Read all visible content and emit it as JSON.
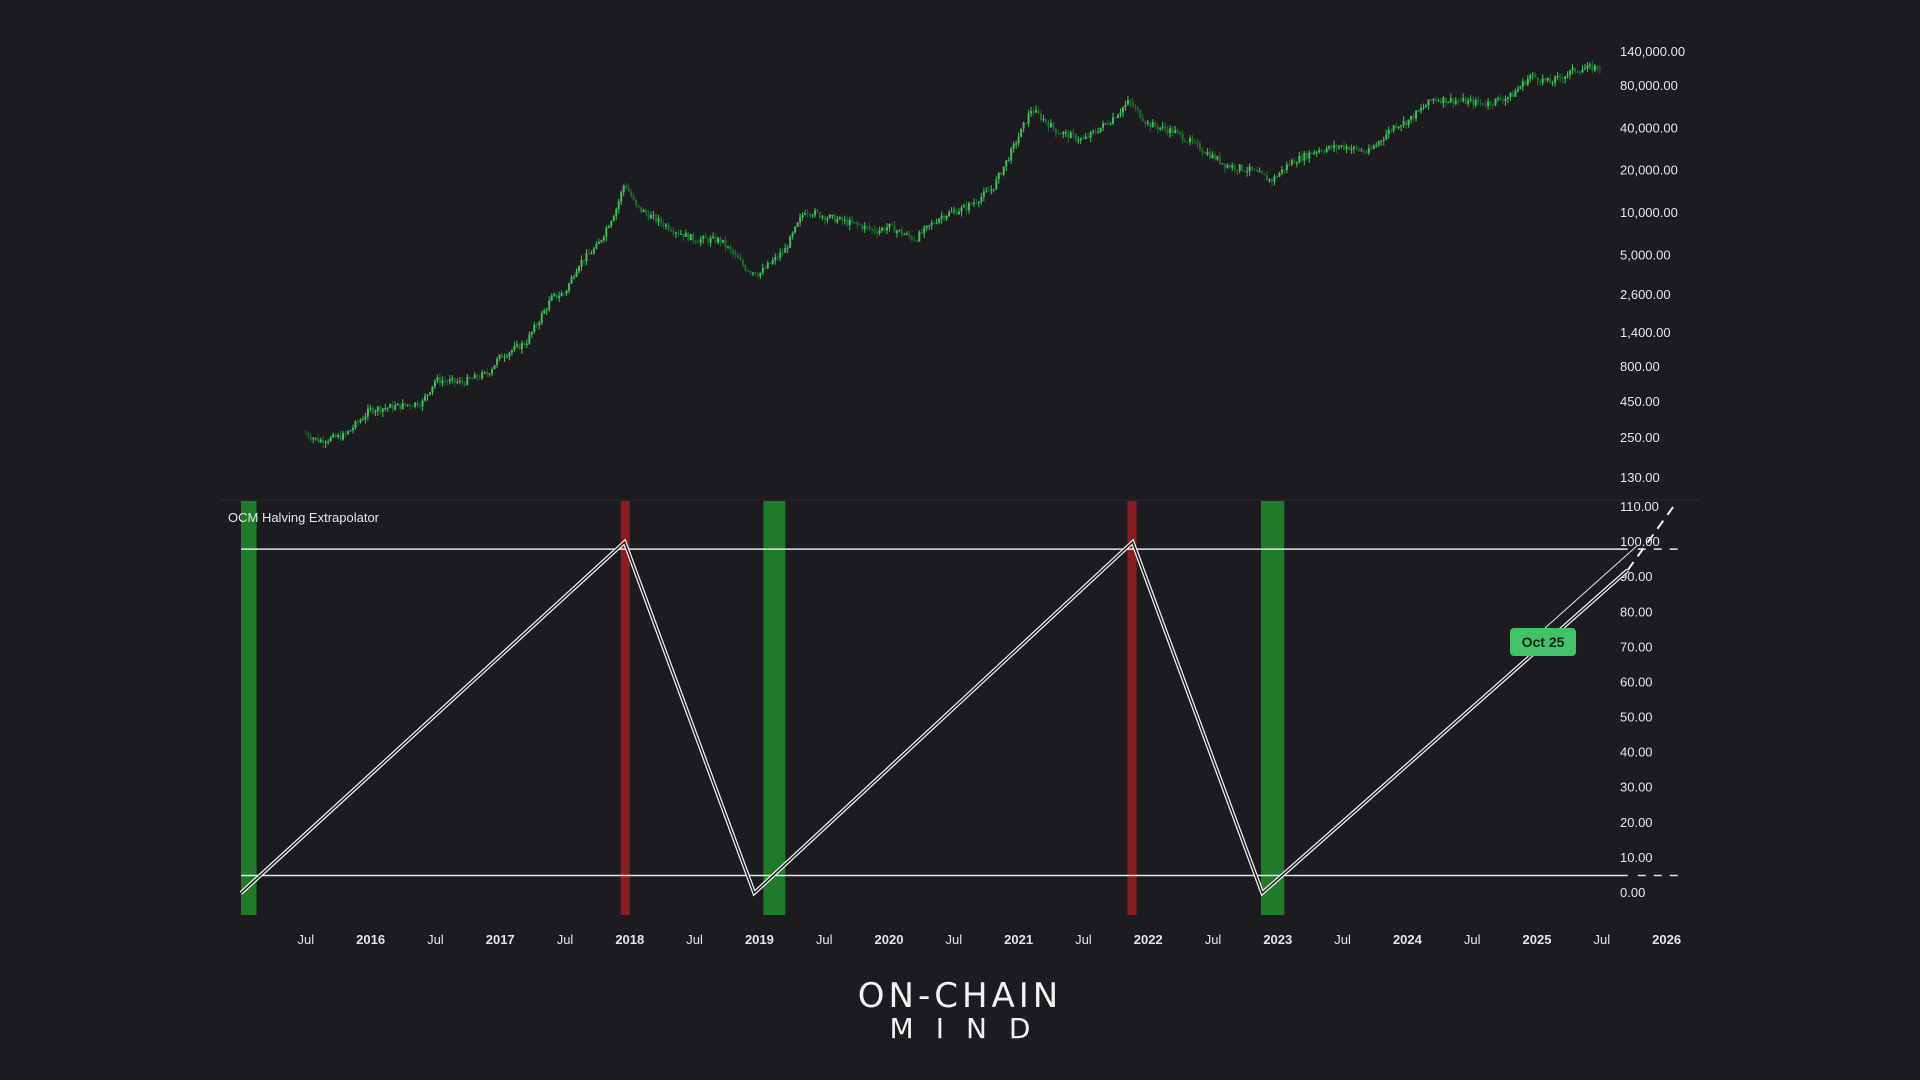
{
  "colors": {
    "background": "#1b1b20",
    "candle_up": "#3fbf5a",
    "candle_down": "#1f6b30",
    "bottom_band": "#1f7a2a",
    "top_band": "#8b1c22",
    "callout": "#3fc46a"
  },
  "indicator": {
    "name": "OCM Halving Extrapolator"
  },
  "callout": {
    "label": "Oct 25",
    "x": 2025.8,
    "y": 100
  },
  "brand": {
    "line1": "ON-CHAIN",
    "line2": "MIND"
  },
  "chart_data": [
    {
      "type": "candlestick",
      "title": "",
      "yscale": "log",
      "ylim": [
        130,
        140000
      ],
      "y_ticks": [
        "140,000.00",
        "80,000.00",
        "40,000.00",
        "20,000.00",
        "10,000.00",
        "5,000.00",
        "2,600.00",
        "1,400.00",
        "800.00",
        "450.00",
        "250.00",
        "130.00"
      ],
      "series": [
        {
          "x": [
            2015.5,
            2015.6,
            2015.8,
            2016.0,
            2016.2,
            2016.4,
            2016.5,
            2016.7,
            2016.9,
            2017.0,
            2017.2,
            2017.4,
            2017.5,
            2017.6,
            2017.75,
            2017.9,
            2017.96,
            2018.05,
            2018.2,
            2018.35,
            2018.5,
            2018.7,
            2018.9,
            2019.0,
            2019.2,
            2019.35,
            2019.5,
            2019.7,
            2019.9,
            2020.0,
            2020.2,
            2020.4,
            2020.6,
            2020.8,
            2020.95,
            2021.1,
            2021.3,
            2021.5,
            2021.7,
            2021.85,
            2022.0,
            2022.2,
            2022.4,
            2022.6,
            2022.8,
            2022.95,
            2023.1,
            2023.3,
            2023.5,
            2023.7,
            2023.9,
            2024.0,
            2024.2,
            2024.4,
            2024.6,
            2024.8,
            2024.95,
            2025.1,
            2025.3,
            2025.5
          ],
          "y": [
            270,
            240,
            260,
            400,
            420,
            450,
            650,
            620,
            720,
            950,
            1200,
            2500,
            2700,
            4300,
            5800,
            11000,
            16500,
            11000,
            9000,
            7500,
            6500,
            6400,
            4000,
            3700,
            5500,
            10500,
            9500,
            8500,
            7500,
            8000,
            6500,
            9500,
            11000,
            15000,
            28000,
            55000,
            38000,
            33000,
            45000,
            62000,
            43000,
            38000,
            29000,
            22000,
            20000,
            17000,
            23000,
            28000,
            30000,
            27000,
            42000,
            45000,
            65000,
            63000,
            60000,
            68000,
            95000,
            85000,
            105000,
            110000
          ]
        }
      ]
    },
    {
      "type": "line",
      "title": "OCM Halving Extrapolator",
      "ylim": [
        0,
        110
      ],
      "y_ticks": [
        "110.00",
        "100.00",
        "90.00",
        "80.00",
        "70.00",
        "60.00",
        "50.00",
        "40.00",
        "30.00",
        "20.00",
        "10.00",
        "0.00"
      ],
      "x_ticks": [
        "Jul",
        "2016",
        "Jul",
        "2017",
        "Jul",
        "2018",
        "Jul",
        "2019",
        "Jul",
        "2020",
        "Jul",
        "2021",
        "Jul",
        "2022",
        "Jul",
        "2023",
        "Jul",
        "2024",
        "Jul",
        "2025",
        "Jul",
        "2026"
      ],
      "series": [
        {
          "x": [
            2015.0,
            2017.96,
            2018.96,
            2021.88,
            2022.88,
            2025.7
          ],
          "y": [
            0,
            100,
            0,
            100,
            0,
            92
          ]
        }
      ],
      "projection": {
        "x": [
          2025.7,
          2026.05
        ],
        "y": [
          92,
          110
        ]
      },
      "levels": [
        98,
        5
      ],
      "bottom_bands": [
        [
          2015.0,
          2015.12
        ],
        [
          2019.03,
          2019.2
        ],
        [
          2022.87,
          2023.05
        ]
      ],
      "top_bands": [
        [
          2017.93,
          2018.0
        ],
        [
          2021.84,
          2021.91
        ]
      ]
    }
  ]
}
